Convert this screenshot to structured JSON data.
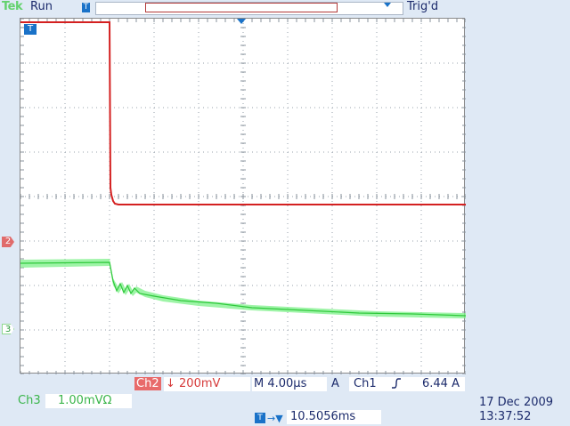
{
  "header": {
    "logo": "Tek",
    "acquisition_state": "Run",
    "trigger_status": "Trig'd",
    "trigger_marker": "T"
  },
  "markers": {
    "ch1": "T",
    "ch2": "2",
    "ch3": "3"
  },
  "readout": {
    "ch2_label": "Ch2",
    "ch2_scale": "↓ 200mV",
    "timebase": "M 4.00µs",
    "trigger_mode": "A",
    "trigger_source": "Ch1",
    "trigger_slope_icon": "rising-edge-icon",
    "trigger_level": "6.44 A",
    "ch3_label": "Ch3",
    "ch3_scale": "1.00mVΩ",
    "trigger_position_icon": "T",
    "trigger_position_arrow": "→▼",
    "trigger_position": "10.5056ms",
    "date": "17 Dec  2009",
    "time": "13:37:52"
  },
  "colors": {
    "ch1_trace": "#d42020",
    "ch3_trace": "#3fe04a",
    "ch2": "#e86a6a",
    "accent": "#1a72c8"
  }
}
